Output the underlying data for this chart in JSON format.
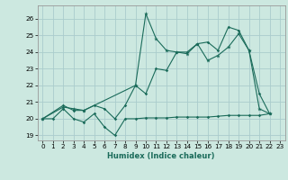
{
  "xlabel": "Humidex (Indice chaleur)",
  "bg_color": "#cce8e0",
  "grid_color": "#aacccc",
  "line_color": "#1a6b5a",
  "xlim": [
    -0.5,
    23.5
  ],
  "ylim": [
    18.7,
    26.8
  ],
  "xticks": [
    0,
    1,
    2,
    3,
    4,
    5,
    6,
    7,
    8,
    9,
    10,
    11,
    12,
    13,
    14,
    15,
    16,
    17,
    18,
    19,
    20,
    21,
    22,
    23
  ],
  "yticks": [
    19,
    20,
    21,
    22,
    23,
    24,
    25,
    26
  ],
  "line1_x": [
    0,
    1,
    2,
    3,
    4,
    5,
    6,
    7,
    8,
    9,
    10,
    11,
    12,
    13,
    14,
    15,
    16,
    17,
    18,
    19,
    20,
    21,
    22
  ],
  "line1_y": [
    20,
    20,
    20.6,
    20,
    19.8,
    20.3,
    19.5,
    19,
    20,
    20,
    20.05,
    20.05,
    20.05,
    20.1,
    20.1,
    20.1,
    20.1,
    20.15,
    20.2,
    20.2,
    20.2,
    20.2,
    20.3
  ],
  "line2_x": [
    0,
    2,
    3,
    4,
    5,
    6,
    7,
    8,
    9,
    10,
    11,
    12,
    13,
    14,
    15,
    16,
    17,
    18,
    19,
    20,
    21,
    22
  ],
  "line2_y": [
    20,
    20.8,
    20.5,
    20.5,
    20.8,
    20.6,
    20.0,
    20.8,
    22.0,
    21.5,
    23.0,
    22.9,
    24.0,
    24.0,
    24.5,
    24.6,
    24.1,
    25.5,
    25.3,
    24.1,
    21.5,
    20.3
  ],
  "line3_x": [
    0,
    2,
    3,
    4,
    9,
    10,
    11,
    12,
    13,
    14,
    15,
    16,
    17,
    18,
    19,
    20,
    21,
    22
  ],
  "line3_y": [
    20,
    20.7,
    20.6,
    20.5,
    22,
    26.3,
    24.8,
    24.1,
    24,
    23.9,
    24.5,
    23.5,
    23.8,
    24.3,
    25.1,
    24.1,
    20.6,
    20.3
  ],
  "xlabel_fontsize": 6.0,
  "tick_fontsize": 5.2
}
